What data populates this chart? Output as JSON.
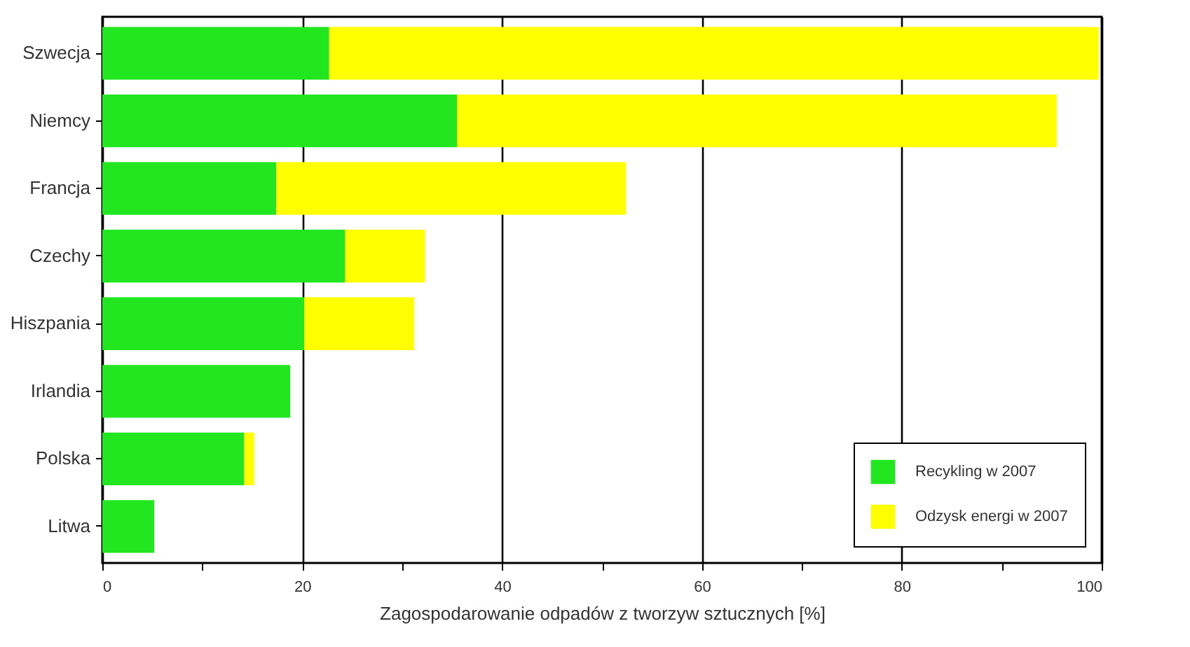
{
  "chart_data": {
    "type": "bar",
    "orientation": "horizontal",
    "stacked": true,
    "xlabel": "Zagospodarowanie odpadów z tworzyw sztucznych [%]",
    "categories": [
      "Szwecja",
      "Niemcy",
      "Francja",
      "Czechy",
      "Hiszpania",
      "Irlandia",
      "Polska",
      "Litwa"
    ],
    "series": [
      {
        "name": "Recykling w 2007",
        "color": "#22e61f",
        "values": [
          22.7,
          35.5,
          17.4,
          24.3,
          20.2,
          18.8,
          14.2,
          5.2
        ]
      },
      {
        "name": "Odzysk energi w 2007",
        "color": "#ffff00",
        "values": [
          77,
          60,
          35,
          8,
          11,
          0,
          1,
          0
        ]
      }
    ],
    "xlim": [
      0,
      100
    ],
    "xticks": [
      0,
      {
        "value": 10,
        "label": null
      },
      20,
      {
        "value": 30,
        "label": null
      },
      40,
      {
        "value": 50,
        "label": null
      },
      60,
      {
        "value": 70,
        "label": null
      },
      80,
      {
        "value": 90,
        "label": null
      },
      100
    ],
    "grid": "x",
    "legend": "bottom right"
  }
}
